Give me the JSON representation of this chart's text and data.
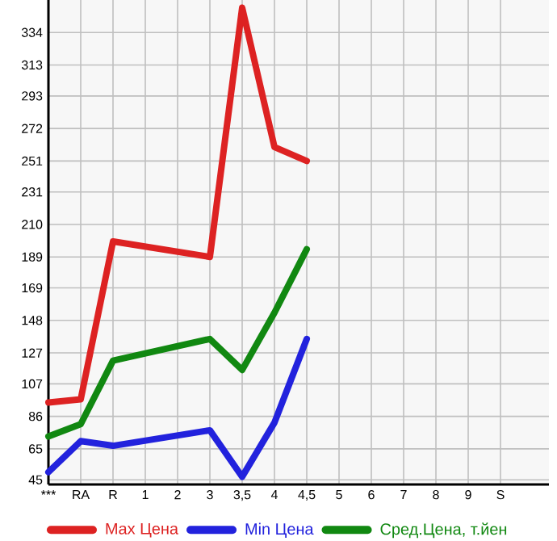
{
  "chart_data": {
    "type": "line",
    "categories": [
      "***",
      "RA",
      "R",
      "1",
      "2",
      "3",
      "3,5",
      "4",
      "4,5",
      "5",
      "6",
      "7",
      "8",
      "9",
      "S"
    ],
    "series": [
      {
        "name": "Max Цена",
        "color": "#dd2222",
        "values": [
          95,
          97,
          199,
          null,
          null,
          189,
          350,
          260,
          251,
          null,
          null,
          null,
          null,
          null,
          null
        ]
      },
      {
        "name": "Min Цена",
        "color": "#2222dd",
        "values": [
          50,
          70,
          67,
          null,
          null,
          77,
          47,
          82,
          136,
          null,
          null,
          null,
          null,
          null,
          null
        ]
      },
      {
        "name": "Сред.Цена, т.йен",
        "color": "#118811",
        "values": [
          73,
          81,
          122,
          null,
          null,
          136,
          116,
          153,
          194,
          null,
          null,
          null,
          null,
          null,
          null
        ]
      }
    ],
    "ylim": [
      42,
      355
    ],
    "yticks": [
      45,
      65,
      86,
      107,
      127,
      148,
      169,
      189,
      210,
      231,
      251,
      272,
      293,
      313,
      334
    ],
    "grid": true,
    "legend": "bottom",
    "line_style": "solid",
    "marker": "none"
  }
}
